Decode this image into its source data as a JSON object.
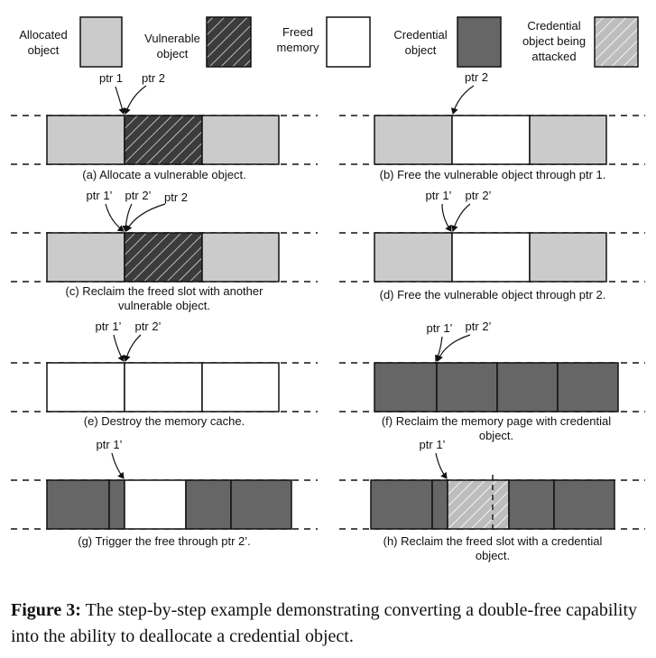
{
  "colors": {
    "allocated": "#cbcbcb",
    "vulnerable": "#3c3c3c",
    "freed": "#ffffff",
    "credential": "#666666",
    "attacked": "#cfcfcf",
    "stroke": "#111111"
  },
  "legend": [
    {
      "kind": "allocated",
      "label": [
        "Allocated",
        "object"
      ]
    },
    {
      "kind": "vulnerable",
      "label": [
        "Vulnerable",
        "object"
      ]
    },
    {
      "kind": "freed",
      "label": [
        "Freed",
        "memory"
      ]
    },
    {
      "kind": "credential",
      "label": [
        "Credential",
        "object"
      ]
    },
    {
      "kind": "attacked",
      "label": [
        "Credential",
        "object being",
        "attacked"
      ]
    }
  ],
  "panels": [
    {
      "id": "a",
      "caption": [
        "(a) Allocate a vulnerable object."
      ],
      "pointers": [
        "ptr 1",
        "ptr 2"
      ]
    },
    {
      "id": "b",
      "caption": [
        "(b) Free the vulnerable object through ptr 1."
      ],
      "pointers": [
        "ptr 2"
      ]
    },
    {
      "id": "c",
      "caption": [
        "(c) Reclaim the freed slot with another",
        "vulnerable object."
      ],
      "pointers": [
        "ptr 1’",
        "ptr 2’",
        "ptr 2"
      ]
    },
    {
      "id": "d",
      "caption": [
        "(d) Free the vulnerable object through ptr 2."
      ],
      "pointers": [
        "ptr 1’",
        "ptr 2’"
      ]
    },
    {
      "id": "e",
      "caption": [
        "(e) Destroy the memory cache."
      ],
      "pointers": [
        "ptr 1’",
        "ptr 2’"
      ]
    },
    {
      "id": "f",
      "caption": [
        "(f) Reclaim the memory page with credential",
        "object."
      ],
      "pointers": [
        "ptr 1’",
        "ptr 2’"
      ]
    },
    {
      "id": "g",
      "caption": [
        "(g) Trigger the free through ptr 2’."
      ],
      "pointers": [
        "ptr 1’"
      ]
    },
    {
      "id": "h",
      "caption": [
        "(h) Reclaim the freed slot with a credential",
        "object."
      ],
      "pointers": [
        "ptr 1’"
      ]
    }
  ],
  "figure": {
    "label": "Figure 3:",
    "text": "The step-by-step example demonstrating converting a double-free capability into the ability to deallocate a credential object."
  }
}
